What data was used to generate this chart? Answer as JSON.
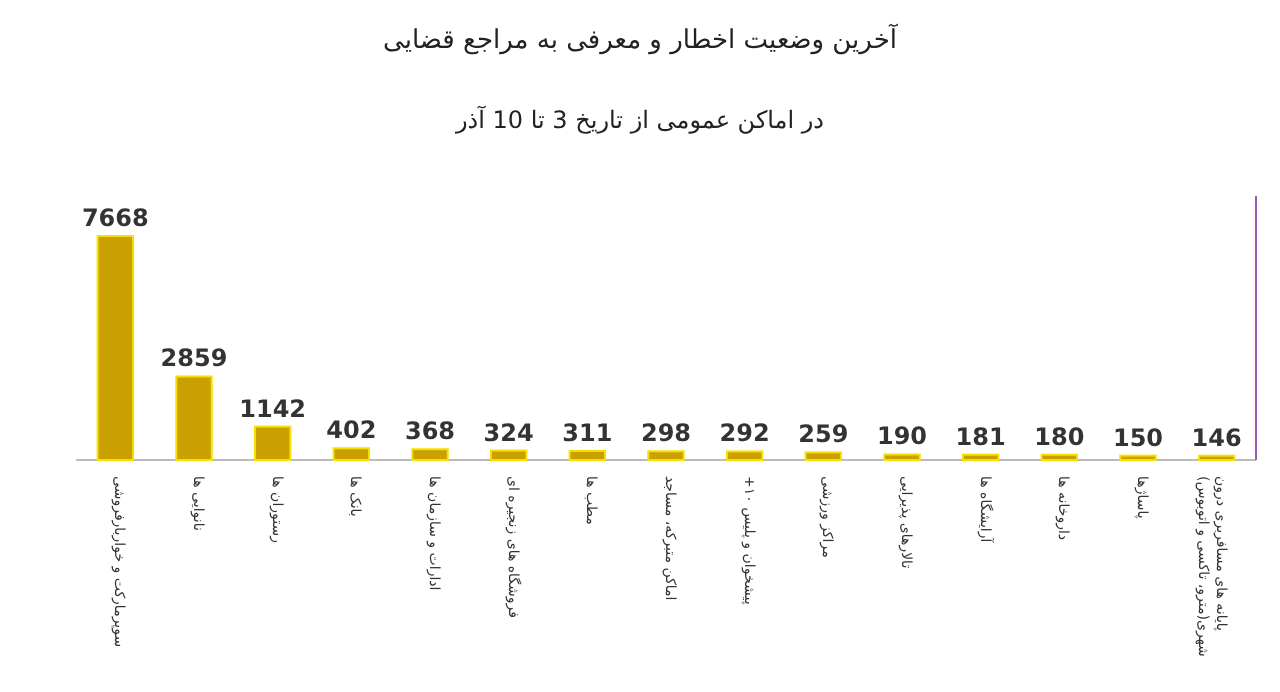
{
  "chart_data": {
    "type": "bar",
    "title": "آخرین وضعیت اخطار و معرفی به مراجع قضایی",
    "subtitle": "در اماکن عمومی از تاریخ 3 تا 10 آذر",
    "categories": [
      "سوپرمارکت و خواربارفروشی",
      "نانوایی ها",
      "رستوران ها",
      "بانک ها",
      "ادارات و سازمان ها",
      "فروشگاه های زنجیره ای",
      "مطب ها",
      "اماکن متبرکه، مساجد",
      "پیشخوان و پلیس ۱۰+",
      "مراکز ورزشی",
      "تالارهای پذیرایی",
      "آرایشگاه ها",
      "داروخانه ها",
      "پاساژها",
      "پایانه های مسافربری درون شهری(مترو، تاکسی و اتوبوس)"
    ],
    "values": [
      7668,
      2859,
      1142,
      402,
      368,
      324,
      311,
      298,
      292,
      259,
      190,
      181,
      180,
      150,
      146
    ],
    "color": "#c9a000",
    "data_labels": true
  }
}
